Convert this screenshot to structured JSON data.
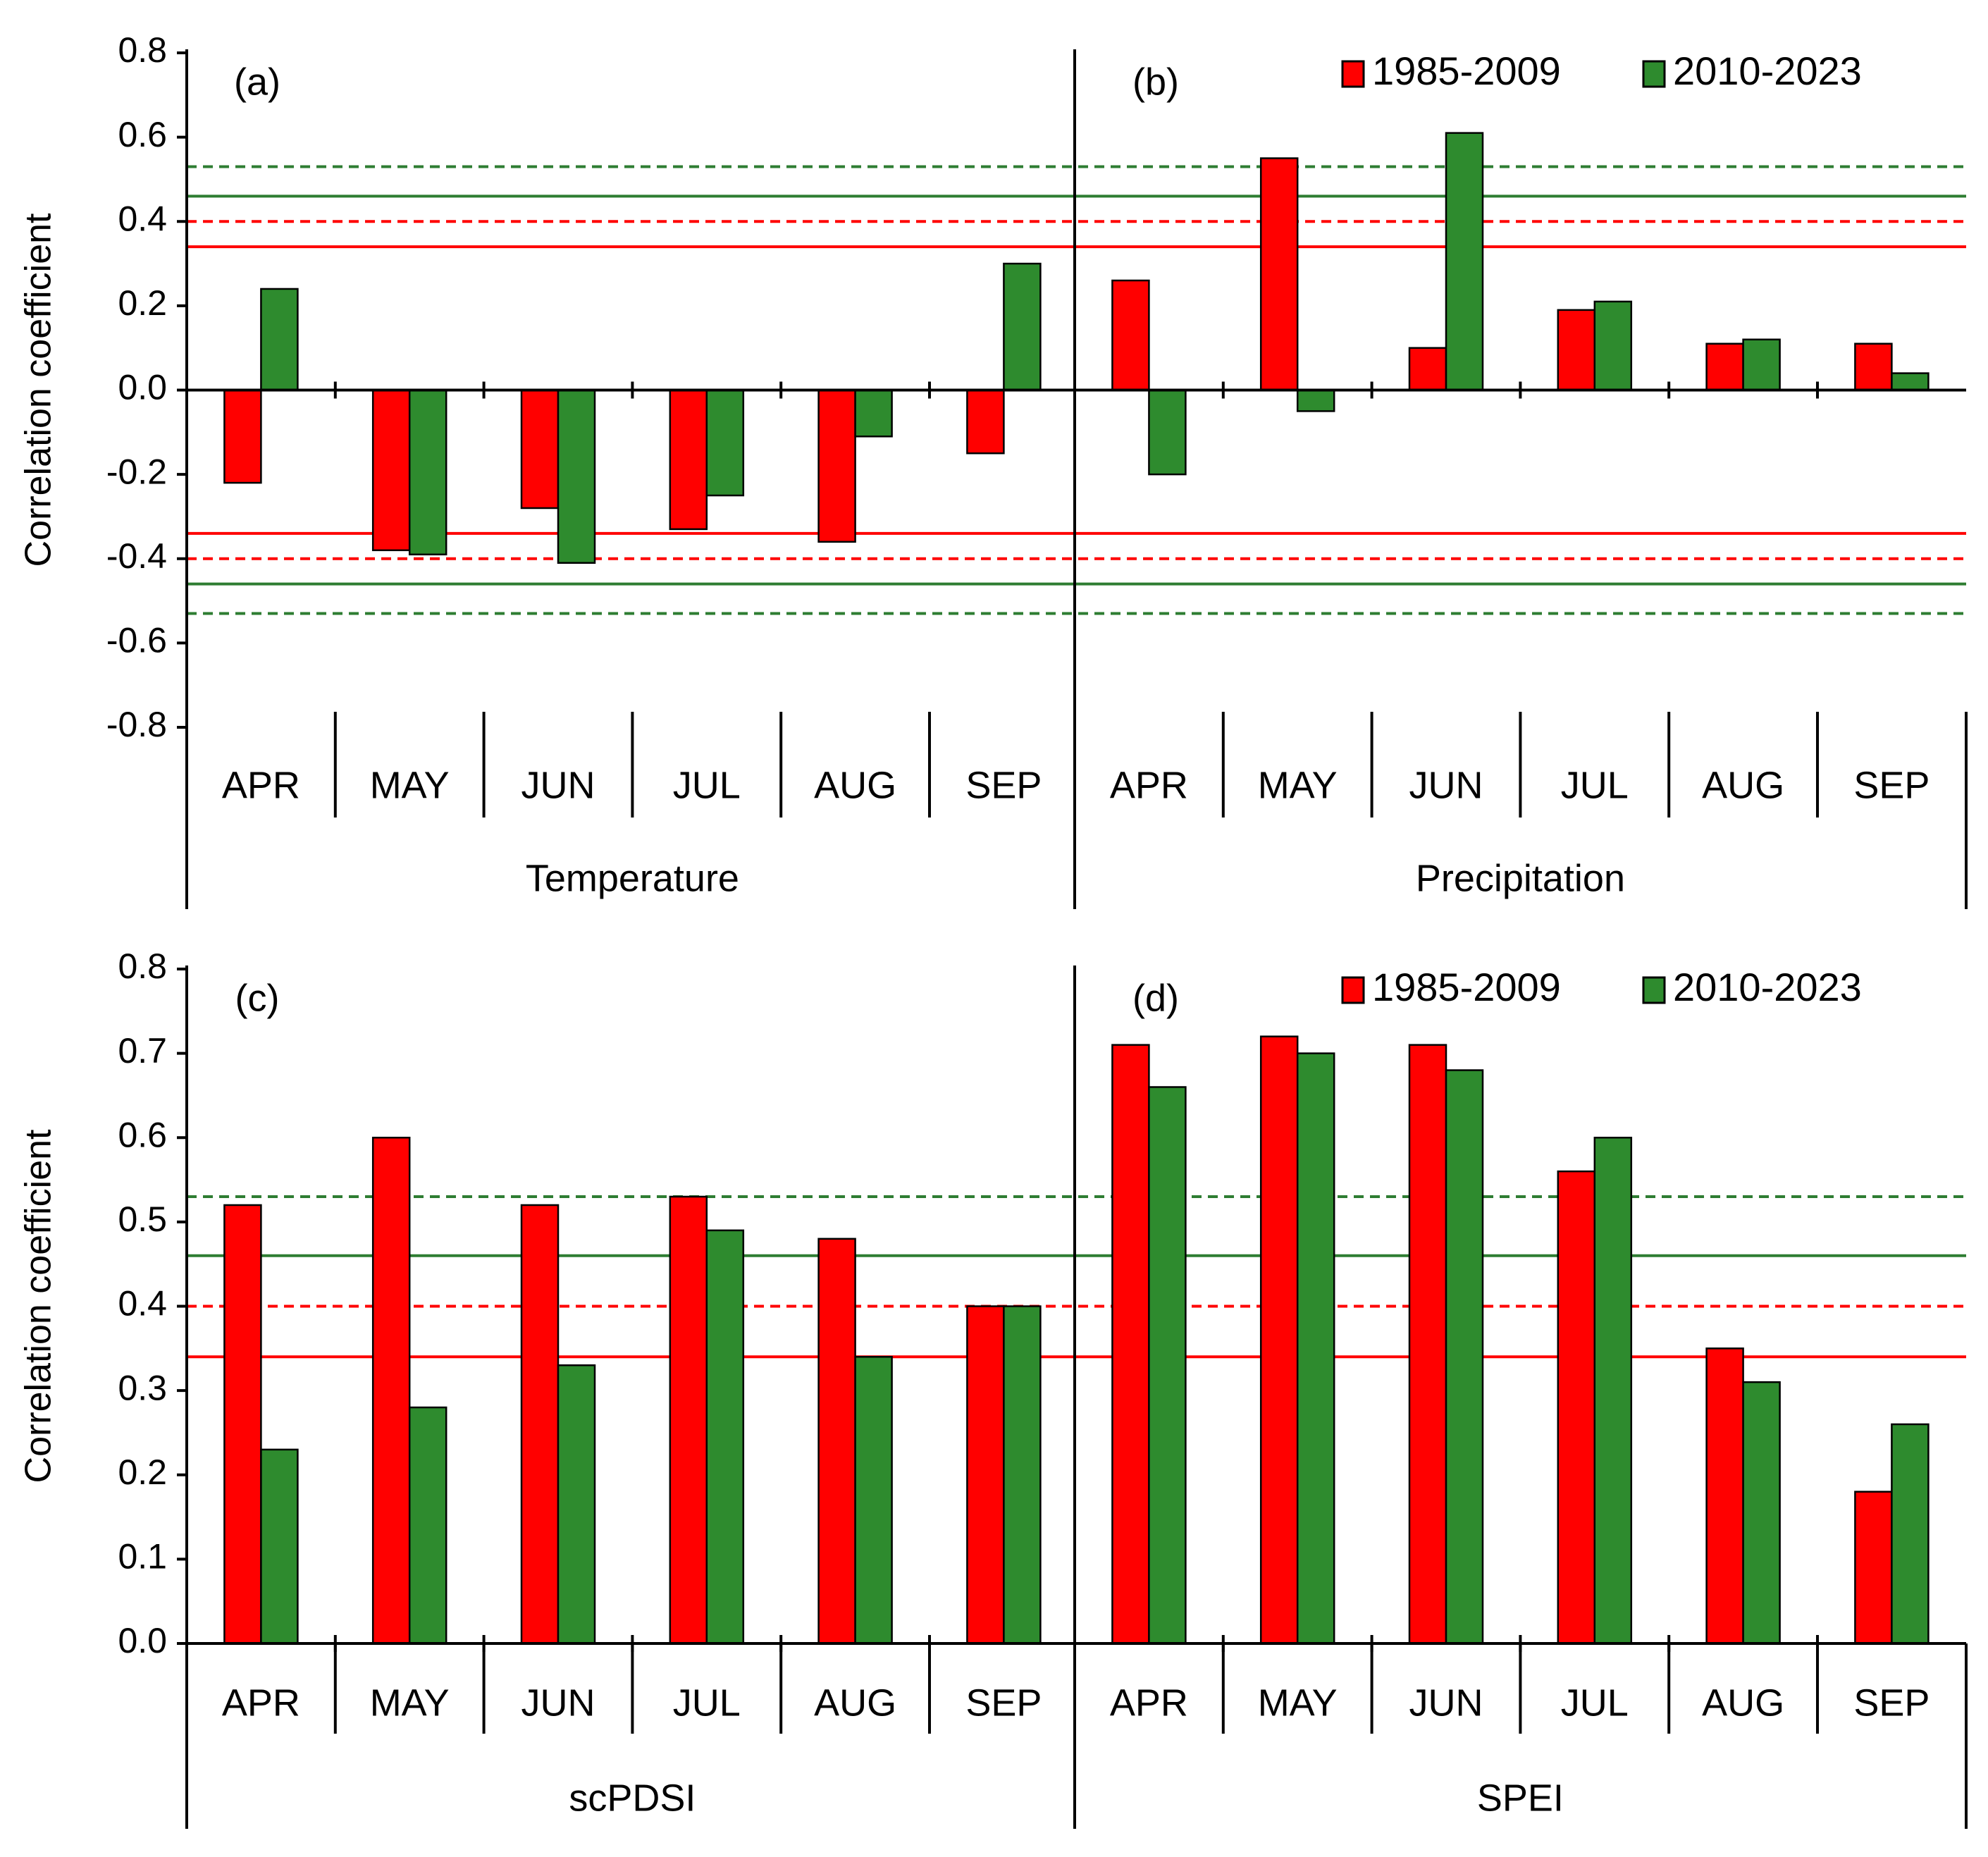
{
  "colors": {
    "series1": "#ff0000",
    "series2": "#2e8b2e",
    "axis": "#000000",
    "threshold_green": "#2e7d32"
  },
  "chart_data": [
    {
      "panel": "(a)",
      "type": "bar",
      "group": "Temperature",
      "categories": [
        "APR",
        "MAY",
        "JUN",
        "JUL",
        "AUG",
        "SEP"
      ],
      "series": [
        {
          "name": "1985-2009",
          "values": [
            -0.22,
            -0.38,
            -0.28,
            -0.33,
            -0.36,
            -0.15
          ]
        },
        {
          "name": "2010-2023",
          "values": [
            0.24,
            -0.39,
            -0.41,
            -0.25,
            -0.11,
            0.3
          ]
        }
      ],
      "ylabel": "Correlation coefficient",
      "ylim": [
        -0.8,
        0.8
      ],
      "yticks": [
        "0.8",
        "0.6",
        "0.4",
        "0.2",
        "0.0",
        "-0.2",
        "-0.4",
        "-0.6",
        "-0.8"
      ],
      "thresholds": [
        {
          "value": 0.34,
          "color": "red",
          "style": "solid"
        },
        {
          "value": 0.4,
          "color": "red",
          "style": "dashed"
        },
        {
          "value": 0.46,
          "color": "green",
          "style": "solid"
        },
        {
          "value": 0.53,
          "color": "green",
          "style": "dashed"
        },
        {
          "value": -0.34,
          "color": "red",
          "style": "solid"
        },
        {
          "value": -0.4,
          "color": "red",
          "style": "dashed"
        },
        {
          "value": -0.46,
          "color": "green",
          "style": "solid"
        },
        {
          "value": -0.53,
          "color": "green",
          "style": "dashed"
        }
      ],
      "legend": false
    },
    {
      "panel": "(b)",
      "type": "bar",
      "group": "Precipitation",
      "categories": [
        "APR",
        "MAY",
        "JUN",
        "JUL",
        "AUG",
        "SEP"
      ],
      "series": [
        {
          "name": "1985-2009",
          "values": [
            0.26,
            0.55,
            0.1,
            0.19,
            0.11,
            0.11
          ]
        },
        {
          "name": "2010-2023",
          "values": [
            -0.2,
            -0.05,
            0.61,
            0.21,
            0.12,
            0.04
          ]
        }
      ],
      "ylim": [
        -0.8,
        0.8
      ],
      "thresholds": [
        {
          "value": 0.34,
          "color": "red",
          "style": "solid"
        },
        {
          "value": 0.4,
          "color": "red",
          "style": "dashed"
        },
        {
          "value": 0.46,
          "color": "green",
          "style": "solid"
        },
        {
          "value": 0.53,
          "color": "green",
          "style": "dashed"
        },
        {
          "value": -0.34,
          "color": "red",
          "style": "solid"
        },
        {
          "value": -0.4,
          "color": "red",
          "style": "dashed"
        },
        {
          "value": -0.46,
          "color": "green",
          "style": "solid"
        },
        {
          "value": -0.53,
          "color": "green",
          "style": "dashed"
        }
      ],
      "legend": true,
      "legend_position": "top-right"
    },
    {
      "panel": "(c)",
      "type": "bar",
      "group": "scPDSI",
      "categories": [
        "APR",
        "MAY",
        "JUN",
        "JUL",
        "AUG",
        "SEP"
      ],
      "series": [
        {
          "name": "1985-2009",
          "values": [
            0.52,
            0.6,
            0.52,
            0.53,
            0.48,
            0.4
          ]
        },
        {
          "name": "2010-2023",
          "values": [
            0.23,
            0.28,
            0.33,
            0.49,
            0.34,
            0.4
          ]
        }
      ],
      "ylabel": "Correlation coefficient",
      "ylim": [
        0.0,
        0.8
      ],
      "yticks": [
        "0.8",
        "0.7",
        "0.6",
        "0.5",
        "0.4",
        "0.3",
        "0.2",
        "0.1",
        "0.0"
      ],
      "thresholds": [
        {
          "value": 0.34,
          "color": "red",
          "style": "solid"
        },
        {
          "value": 0.4,
          "color": "red",
          "style": "dashed"
        },
        {
          "value": 0.46,
          "color": "green",
          "style": "solid"
        },
        {
          "value": 0.53,
          "color": "green",
          "style": "dashed"
        }
      ],
      "legend": false
    },
    {
      "panel": "(d)",
      "type": "bar",
      "group": "SPEI",
      "categories": [
        "APR",
        "MAY",
        "JUN",
        "JUL",
        "AUG",
        "SEP"
      ],
      "series": [
        {
          "name": "1985-2009",
          "values": [
            0.71,
            0.72,
            0.71,
            0.56,
            0.35,
            0.18
          ]
        },
        {
          "name": "2010-2023",
          "values": [
            0.66,
            0.7,
            0.68,
            0.6,
            0.31,
            0.26
          ]
        }
      ],
      "ylim": [
        0.0,
        0.8
      ],
      "thresholds": [
        {
          "value": 0.34,
          "color": "red",
          "style": "solid"
        },
        {
          "value": 0.4,
          "color": "red",
          "style": "dashed"
        },
        {
          "value": 0.46,
          "color": "green",
          "style": "solid"
        },
        {
          "value": 0.53,
          "color": "green",
          "style": "dashed"
        }
      ],
      "legend": true,
      "legend_position": "top-right"
    }
  ]
}
